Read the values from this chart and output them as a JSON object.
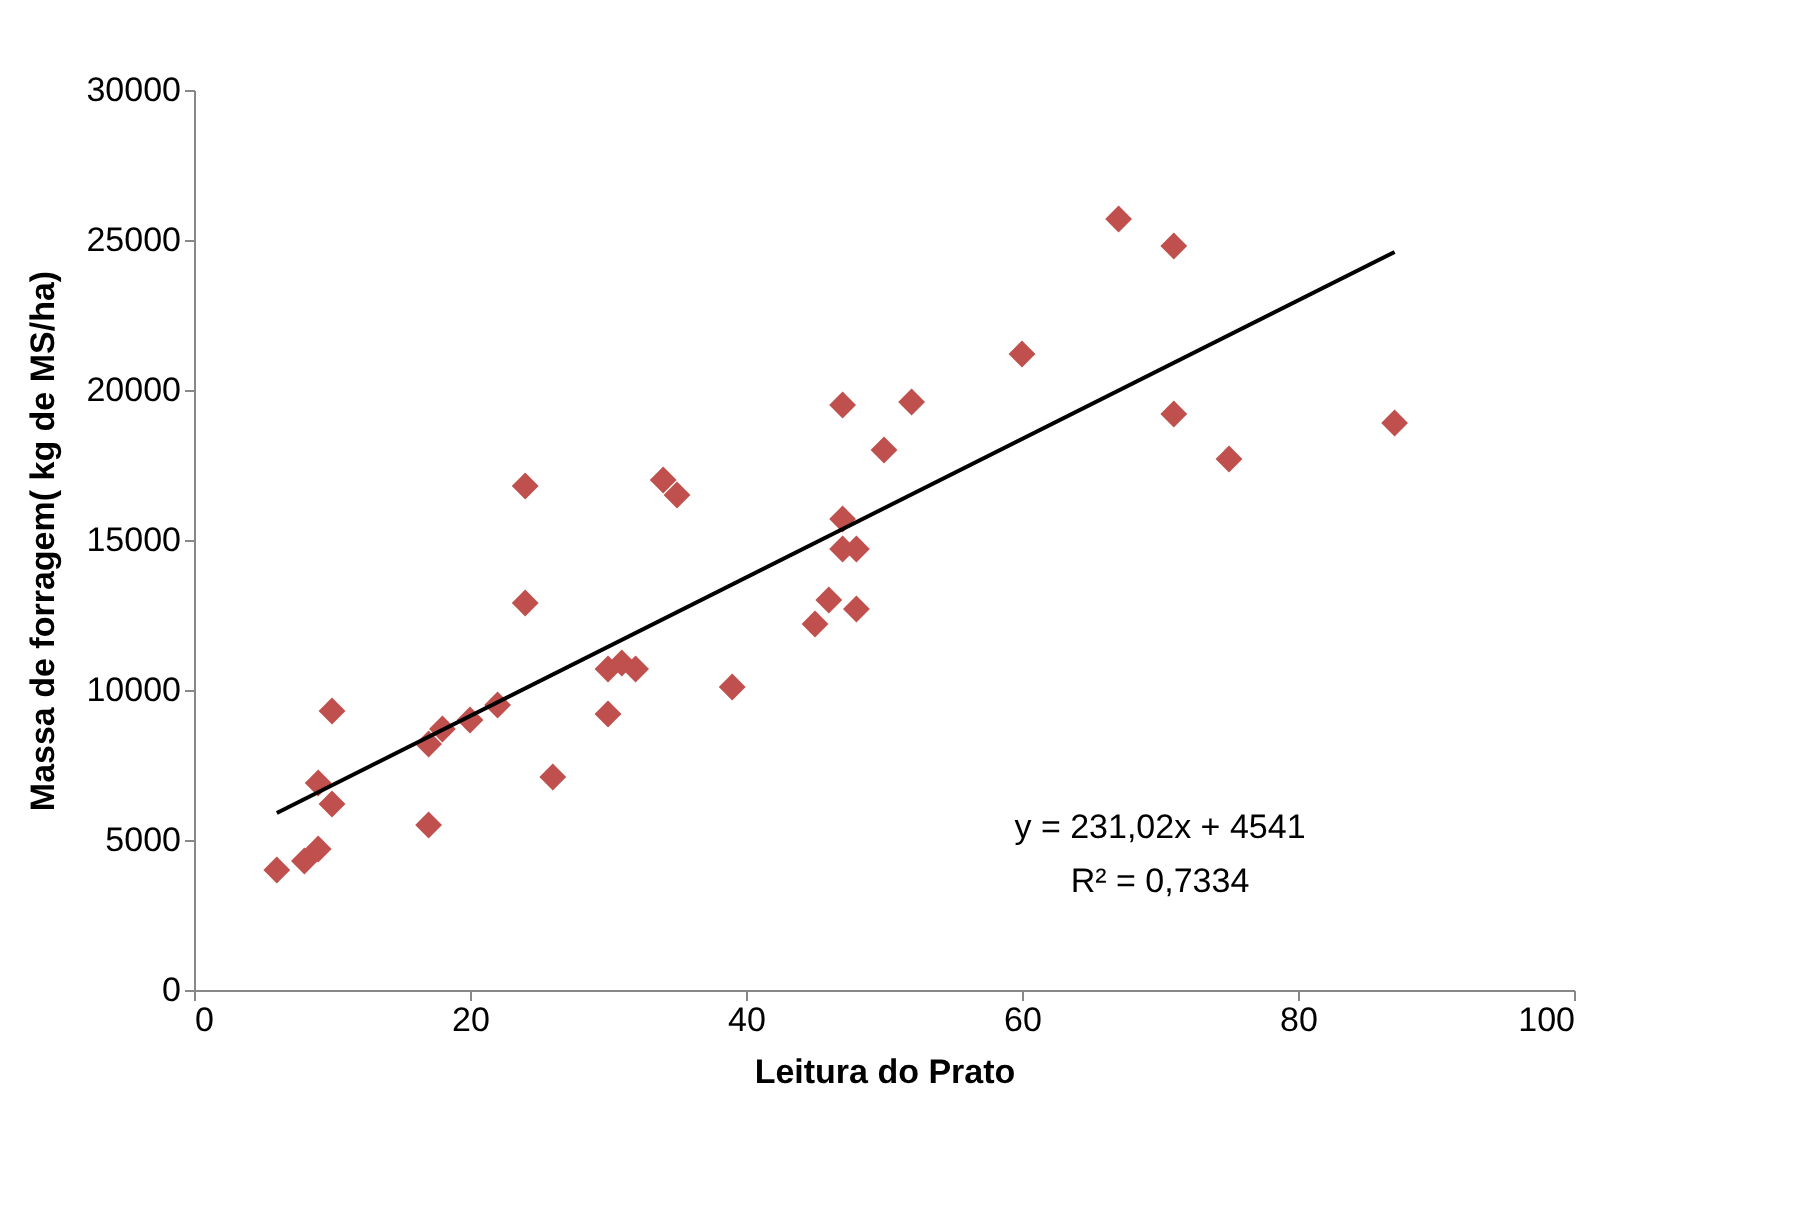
{
  "chart_data": {
    "type": "scatter",
    "xlabel": "Leitura do Prato",
    "ylabel": "Massa de forragem( kg de MS/ha)",
    "xlim": [
      0,
      100
    ],
    "xticks": [
      0,
      20,
      40,
      60,
      80,
      100
    ],
    "ylim": [
      0,
      30000
    ],
    "yticks": [
      0,
      5000,
      10000,
      15000,
      20000,
      25000,
      30000
    ],
    "series": [
      {
        "color": "#c0504d",
        "marker": "diamond",
        "x": [
          6,
          8,
          9,
          9,
          10,
          10,
          17,
          17,
          18,
          20,
          22,
          24,
          24,
          26,
          30,
          30,
          31,
          32,
          34,
          35,
          39,
          45,
          46,
          47,
          47,
          47,
          48,
          48,
          50,
          52,
          60,
          67,
          71,
          71,
          75,
          87
        ],
        "values": [
          4000,
          4300,
          4700,
          6900,
          9300,
          6200,
          5500,
          8200,
          8700,
          9000,
          9500,
          16800,
          12900,
          7100,
          9200,
          10700,
          10900,
          10700,
          17000,
          16500,
          10100,
          12200,
          13000,
          19500,
          15700,
          14700,
          14700,
          12700,
          18000,
          19600,
          21200,
          25700,
          24800,
          19200,
          17700,
          18900
        ]
      },
      {
        "type": "line",
        "color": "#000000",
        "marker": "none",
        "x": [
          6,
          87
        ],
        "values": [
          5900,
          24600
        ]
      }
    ],
    "annotations": [
      "y = 231,02x + 4541",
      "R² = 0,7334"
    ]
  }
}
